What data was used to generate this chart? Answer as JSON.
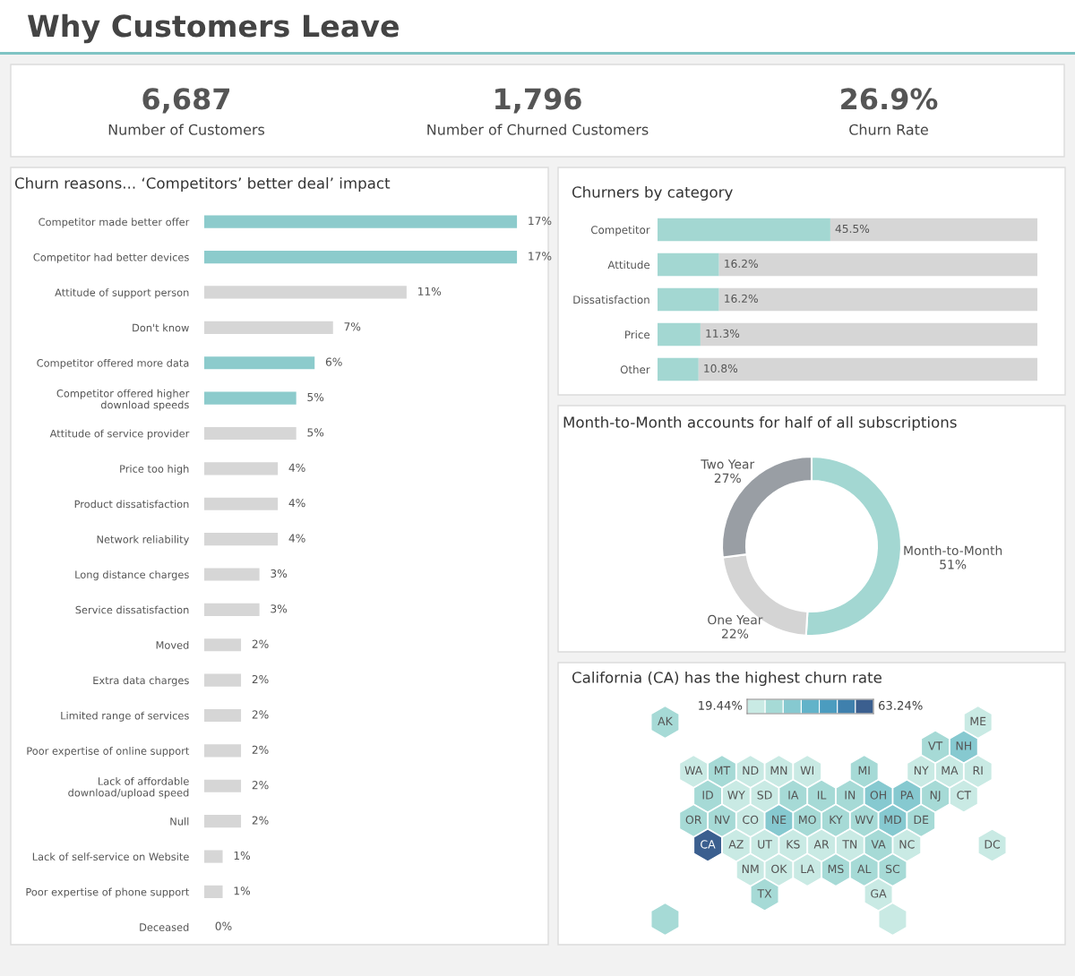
{
  "chart_data": [
    {
      "type": "other",
      "title": "Why Customers Leave",
      "annotations": [
        "6,687",
        "Number of Customers",
        "1,796",
        "Number of Churned Customers",
        "26.9%",
        "Churn Rate"
      ]
    },
    {
      "type": "bar",
      "orientation": "horizontal",
      "title": "Churn reasons... ‘Competitors’ better deal’ impact",
      "categories": [
        "Competitor made better offer",
        "Competitor had better devices",
        "Attitude of support person",
        "Don't know",
        "Competitor offered more data",
        "Competitor offered higher\ndownload speeds",
        "Attitude of service provider",
        "Price too high",
        "Product dissatisfaction",
        "Network reliability",
        "Long distance charges",
        "Service dissatisfaction",
        "Moved",
        "Extra data charges",
        "Limited range of services",
        "Poor expertise of online support",
        "Lack of affordable\ndownload/upload speed",
        "Null",
        "Lack of self-service on Website",
        "Poor expertise of phone support",
        "Deceased"
      ],
      "values": [
        17,
        17,
        11,
        7,
        6,
        5,
        5,
        4,
        4,
        4,
        3,
        3,
        2,
        2,
        2,
        2,
        2,
        2,
        1,
        1,
        0
      ],
      "value_labels": [
        "17%",
        "17%",
        "11%",
        "7%",
        "6%",
        "5%",
        "5%",
        "4%",
        "4%",
        "4%",
        "3%",
        "3%",
        "2%",
        "2%",
        "2%",
        "2%",
        "2%",
        "2%",
        "1%",
        "1%",
        "0%"
      ],
      "colors": [
        "#8ccbcc",
        "#8ccbcc",
        "#d6d6d6",
        "#d6d6d6",
        "#8ccbcc",
        "#8ccbcc",
        "#d6d6d6",
        "#d6d6d6",
        "#d6d6d6",
        "#d6d6d6",
        "#d6d6d6",
        "#d6d6d6",
        "#d6d6d6",
        "#d6d6d6",
        "#d6d6d6",
        "#d6d6d6",
        "#d6d6d6",
        "#d6d6d6",
        "#d6d6d6",
        "#d6d6d6",
        "#d6d6d6"
      ]
    },
    {
      "type": "bar",
      "orientation": "horizontal",
      "stacked": true,
      "title": "Churners by category",
      "categories": [
        "Competitor",
        "Attitude",
        "Dissatisfaction",
        "Price",
        "Other"
      ],
      "series": [
        {
          "color": "#a3d7d2",
          "values": [
            45.5,
            16.2,
            16.2,
            11.3,
            10.8
          ],
          "value_labels": [
            "45.5%",
            "16.2%",
            "16.2%",
            "11.3%",
            "10.8%"
          ]
        },
        {
          "color": "#d6d6d6",
          "values": [
            54.5,
            83.8,
            83.8,
            88.7,
            89.2
          ]
        }
      ]
    },
    {
      "type": "donut",
      "title": "Month-to-Month accounts for half of all subscriptions",
      "categories": [
        "Month-to-Month",
        "One Year",
        "Two Year"
      ],
      "values": [
        51,
        22,
        27
      ],
      "value_labels": [
        "51%",
        "22%",
        "27%"
      ],
      "colors": [
        "#a3d7d2",
        "#d4d4d4",
        "#999ea4"
      ]
    },
    {
      "type": "other",
      "title": "California (CA) has the highest churn rate",
      "annotations": [
        "19.44%",
        "63.24%"
      ],
      "categories": [
        "AK",
        "ME",
        "VT",
        "NH",
        "WA",
        "MT",
        "ND",
        "MN",
        "WI",
        "MI",
        "NY",
        "MA",
        "RI",
        "ID",
        "WY",
        "SD",
        "IA",
        "IL",
        "IN",
        "OH",
        "PA",
        "NJ",
        "CT",
        "OR",
        "NV",
        "CO",
        "NE",
        "MO",
        "KY",
        "WV",
        "MD",
        "DE",
        "CA",
        "AZ",
        "UT",
        "KS",
        "AR",
        "TN",
        "VA",
        "NC",
        "DC",
        "NM",
        "OK",
        "LA",
        "MS",
        "AL",
        "SC",
        "TX",
        "GA",
        null,
        null
      ],
      "colors": [
        "#a6dad6",
        "#c9eae4",
        "#a6dad6",
        "#86c9d0",
        "#c9eae4",
        "#a6dad6",
        "#c9eae4",
        "#c9eae4",
        "#c9eae4",
        "#a6dad6",
        "#c9eae4",
        "#c9eae4",
        "#c9eae4",
        "#a6dad6",
        "#c9eae4",
        "#c9eae4",
        "#a6dad6",
        "#a6dad6",
        "#a6dad6",
        "#86c9d0",
        "#86c9d0",
        "#a6dad6",
        "#c9eae4",
        "#a6dad6",
        "#a6dad6",
        "#c9eae4",
        "#86c9d0",
        "#a6dad6",
        "#a6dad6",
        "#a6dad6",
        "#86c9d0",
        "#a6dad6",
        "#3b5f8f",
        "#c9eae4",
        "#c9eae4",
        "#c9eae4",
        "#c9eae4",
        "#c9eae4",
        "#a6dad6",
        "#c9eae4",
        "#c9eae4",
        "#c9eae4",
        "#c9eae4",
        "#c9eae4",
        "#a6dad6",
        "#a6dad6",
        "#a6dad6",
        "#a6dad6",
        "#c9eae4",
        "#a6dad6",
        "#c9eae4"
      ]
    }
  ]
}
